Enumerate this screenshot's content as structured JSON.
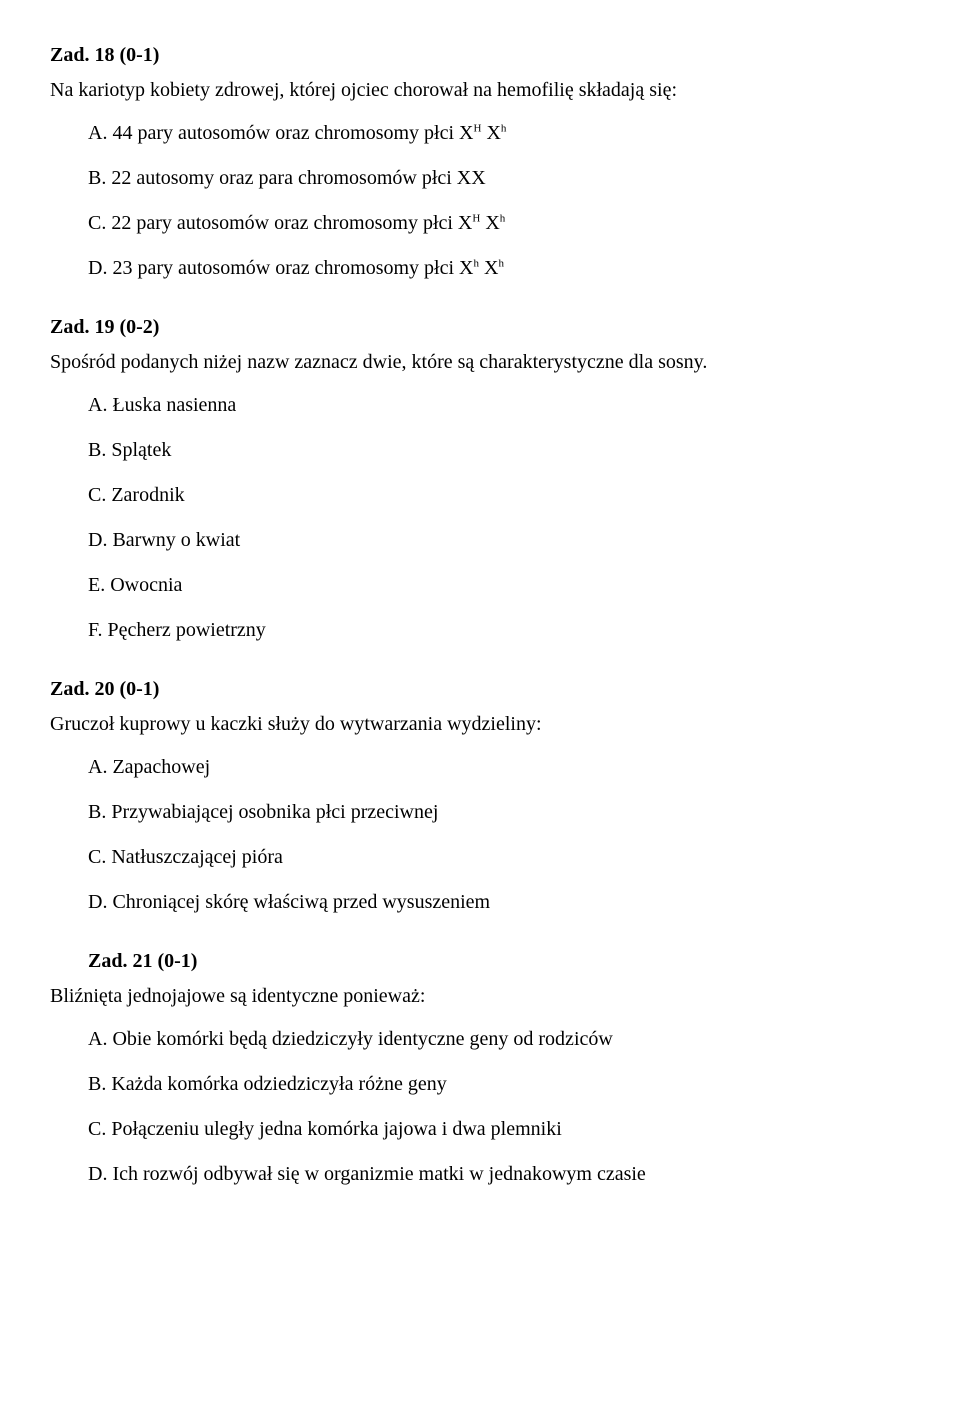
{
  "task18": {
    "num": "Zad. 18 (0-1)",
    "intro": "Na kariotyp kobiety zdrowej, której ojciec chorował na hemofilię składają się:",
    "optA_pre": "A. 44 pary autosomów oraz chromosomy płci X",
    "optA_sup1": "H",
    "optA_mid": " X",
    "optA_sup2": "h",
    "optB": "B. 22 autosomy oraz para chromosomów płci XX",
    "optC_pre": "C. 22 pary autosomów oraz chromosomy płci X",
    "optC_sup1": "H",
    "optC_mid": " X",
    "optC_sup2": "h",
    "optD_pre": "D. 23 pary autosomów oraz chromosomy płci X",
    "optD_sup1": "h",
    "optD_mid": " X",
    "optD_sup2": "h"
  },
  "task19": {
    "num": "Zad. 19 (0-2)",
    "intro": "Spośród podanych niżej nazw zaznacz dwie, które są charakterystyczne dla sosny.",
    "optA": "A. Łuska nasienna",
    "optB": "B. Splątek",
    "optC": "C. Zarodnik",
    "optD": "D. Barwny o kwiat",
    "optE": "E. Owocnia",
    "optF": "F. Pęcherz  powietrzny"
  },
  "task20": {
    "num": "Zad. 20 (0-1)",
    "intro": "Gruczoł kuprowy u kaczki służy do wytwarzania wydzieliny:",
    "optA": "A. Zapachowej",
    "optB": "B. Przywabiającej  osobnika płci przeciwnej",
    "optC": "C. Natłuszczającej  pióra",
    "optD": "D. Chroniącej  skórę właściwą przed wysuszeniem"
  },
  "task21": {
    "num": "Zad. 21 (0-1)",
    "intro": "Bliźnięta jednojajowe są identyczne ponieważ:",
    "optA": "A. Obie komórki będą dziedziczyły identyczne geny od rodziców",
    "optB": "B. Każda komórka odziedziczyła różne geny",
    "optC": "C. Połączeniu uległy jedna komórka jajowa i dwa plemniki",
    "optD": "D. Ich rozwój odbywał się w organizmie matki w jednakowym czasie"
  }
}
